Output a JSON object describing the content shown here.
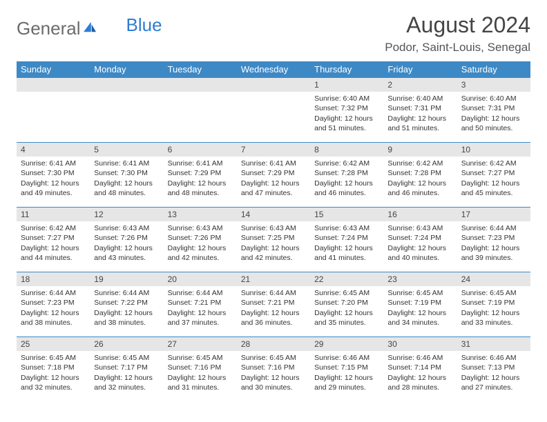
{
  "brand": {
    "part1": "General",
    "part2": "Blue"
  },
  "title": "August 2024",
  "location": "Podor, Saint-Louis, Senegal",
  "colors": {
    "header_bg": "#3d89c6",
    "header_text": "#ffffff",
    "daynum_bg": "#e6e6e6",
    "row_border": "#3d89c6",
    "logo_gray": "#6b6b6b",
    "logo_blue": "#2d7dd2"
  },
  "weekdays": [
    "Sunday",
    "Monday",
    "Tuesday",
    "Wednesday",
    "Thursday",
    "Friday",
    "Saturday"
  ],
  "first_weekday_index": 4,
  "days": [
    {
      "n": 1,
      "sunrise": "6:40 AM",
      "sunset": "7:32 PM",
      "daylight": "12 hours and 51 minutes."
    },
    {
      "n": 2,
      "sunrise": "6:40 AM",
      "sunset": "7:31 PM",
      "daylight": "12 hours and 51 minutes."
    },
    {
      "n": 3,
      "sunrise": "6:40 AM",
      "sunset": "7:31 PM",
      "daylight": "12 hours and 50 minutes."
    },
    {
      "n": 4,
      "sunrise": "6:41 AM",
      "sunset": "7:30 PM",
      "daylight": "12 hours and 49 minutes."
    },
    {
      "n": 5,
      "sunrise": "6:41 AM",
      "sunset": "7:30 PM",
      "daylight": "12 hours and 48 minutes."
    },
    {
      "n": 6,
      "sunrise": "6:41 AM",
      "sunset": "7:29 PM",
      "daylight": "12 hours and 48 minutes."
    },
    {
      "n": 7,
      "sunrise": "6:41 AM",
      "sunset": "7:29 PM",
      "daylight": "12 hours and 47 minutes."
    },
    {
      "n": 8,
      "sunrise": "6:42 AM",
      "sunset": "7:28 PM",
      "daylight": "12 hours and 46 minutes."
    },
    {
      "n": 9,
      "sunrise": "6:42 AM",
      "sunset": "7:28 PM",
      "daylight": "12 hours and 46 minutes."
    },
    {
      "n": 10,
      "sunrise": "6:42 AM",
      "sunset": "7:27 PM",
      "daylight": "12 hours and 45 minutes."
    },
    {
      "n": 11,
      "sunrise": "6:42 AM",
      "sunset": "7:27 PM",
      "daylight": "12 hours and 44 minutes."
    },
    {
      "n": 12,
      "sunrise": "6:43 AM",
      "sunset": "7:26 PM",
      "daylight": "12 hours and 43 minutes."
    },
    {
      "n": 13,
      "sunrise": "6:43 AM",
      "sunset": "7:26 PM",
      "daylight": "12 hours and 42 minutes."
    },
    {
      "n": 14,
      "sunrise": "6:43 AM",
      "sunset": "7:25 PM",
      "daylight": "12 hours and 42 minutes."
    },
    {
      "n": 15,
      "sunrise": "6:43 AM",
      "sunset": "7:24 PM",
      "daylight": "12 hours and 41 minutes."
    },
    {
      "n": 16,
      "sunrise": "6:43 AM",
      "sunset": "7:24 PM",
      "daylight": "12 hours and 40 minutes."
    },
    {
      "n": 17,
      "sunrise": "6:44 AM",
      "sunset": "7:23 PM",
      "daylight": "12 hours and 39 minutes."
    },
    {
      "n": 18,
      "sunrise": "6:44 AM",
      "sunset": "7:23 PM",
      "daylight": "12 hours and 38 minutes."
    },
    {
      "n": 19,
      "sunrise": "6:44 AM",
      "sunset": "7:22 PM",
      "daylight": "12 hours and 38 minutes."
    },
    {
      "n": 20,
      "sunrise": "6:44 AM",
      "sunset": "7:21 PM",
      "daylight": "12 hours and 37 minutes."
    },
    {
      "n": 21,
      "sunrise": "6:44 AM",
      "sunset": "7:21 PM",
      "daylight": "12 hours and 36 minutes."
    },
    {
      "n": 22,
      "sunrise": "6:45 AM",
      "sunset": "7:20 PM",
      "daylight": "12 hours and 35 minutes."
    },
    {
      "n": 23,
      "sunrise": "6:45 AM",
      "sunset": "7:19 PM",
      "daylight": "12 hours and 34 minutes."
    },
    {
      "n": 24,
      "sunrise": "6:45 AM",
      "sunset": "7:19 PM",
      "daylight": "12 hours and 33 minutes."
    },
    {
      "n": 25,
      "sunrise": "6:45 AM",
      "sunset": "7:18 PM",
      "daylight": "12 hours and 32 minutes."
    },
    {
      "n": 26,
      "sunrise": "6:45 AM",
      "sunset": "7:17 PM",
      "daylight": "12 hours and 32 minutes."
    },
    {
      "n": 27,
      "sunrise": "6:45 AM",
      "sunset": "7:16 PM",
      "daylight": "12 hours and 31 minutes."
    },
    {
      "n": 28,
      "sunrise": "6:45 AM",
      "sunset": "7:16 PM",
      "daylight": "12 hours and 30 minutes."
    },
    {
      "n": 29,
      "sunrise": "6:46 AM",
      "sunset": "7:15 PM",
      "daylight": "12 hours and 29 minutes."
    },
    {
      "n": 30,
      "sunrise": "6:46 AM",
      "sunset": "7:14 PM",
      "daylight": "12 hours and 28 minutes."
    },
    {
      "n": 31,
      "sunrise": "6:46 AM",
      "sunset": "7:13 PM",
      "daylight": "12 hours and 27 minutes."
    }
  ],
  "labels": {
    "sunrise": "Sunrise: ",
    "sunset": "Sunset: ",
    "daylight": "Daylight: "
  }
}
